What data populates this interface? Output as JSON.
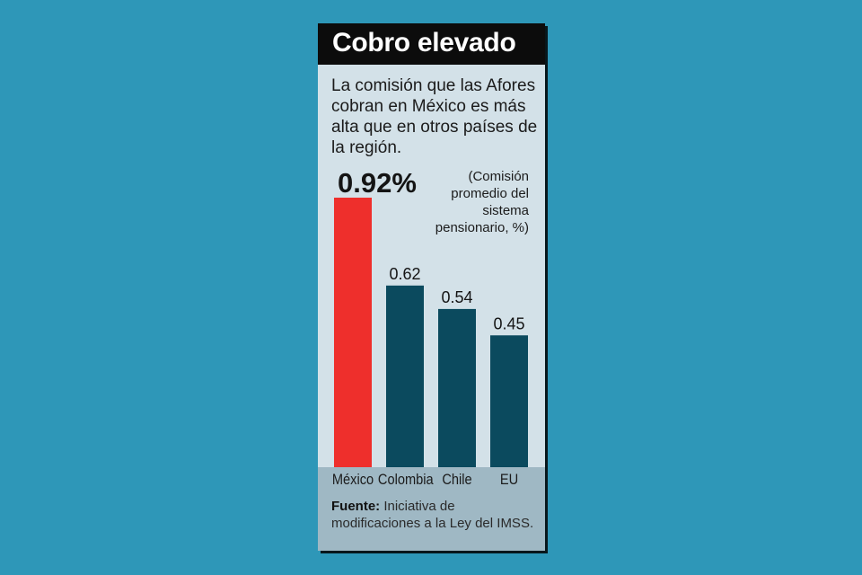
{
  "title": "Cobro elevado",
  "subtitle": "La comisión que las Afores cobran en México es más alta que en otros países de la región.",
  "note": "(Comisión promedio del sistema pensionario, %)",
  "source_label": "Fuente:",
  "source_text": "Iniciativa de modificaciones a la Ley del IMSS.",
  "colors": {
    "highlight": "#ee2f2c",
    "bar": "#0b4a5e",
    "background": "#2e97b8",
    "card": "#d3e1e8"
  },
  "chart_data": {
    "type": "bar",
    "categories": [
      "México",
      "Colombia",
      "Chile",
      "EU"
    ],
    "values": [
      0.92,
      0.62,
      0.54,
      0.45
    ],
    "value_labels": [
      "0.92%",
      "0.62",
      "0.54",
      "0.45"
    ],
    "title": "Cobro elevado",
    "xlabel": "",
    "ylabel": "",
    "ylim": [
      0,
      0.92
    ],
    "grid": false,
    "highlight_category": "México"
  }
}
